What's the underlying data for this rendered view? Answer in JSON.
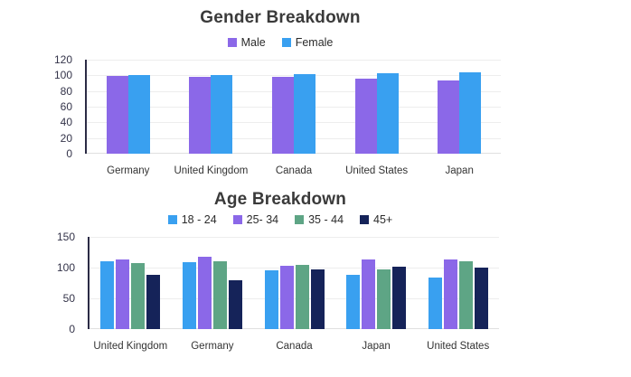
{
  "page": {
    "background": "#ffffff"
  },
  "palette": {
    "purple": "#8B68E8",
    "blue": "#39A0F0",
    "green": "#5EA585",
    "navy": "#152359",
    "axis_line": "#2b2b45",
    "grid_line": "#ededed",
    "title_text": "#3a3a3a",
    "tick_text": "#34344a"
  },
  "chart_data": [
    {
      "type": "bar",
      "title": "Gender Breakdown",
      "categories": [
        "Germany",
        "United Kingdom",
        "Canada",
        "United States",
        "Japan"
      ],
      "series": [
        {
          "name": "Male",
          "color": "#8B68E8",
          "values": [
            99,
            98,
            98,
            96,
            94
          ]
        },
        {
          "name": "Female",
          "color": "#39A0F0",
          "values": [
            101,
            101,
            102,
            103,
            104
          ]
        }
      ],
      "xlabel": "",
      "ylabel": "",
      "ylim": [
        0,
        120
      ],
      "yticks": [
        0,
        20,
        40,
        60,
        80,
        100,
        120
      ],
      "grid": true,
      "legend_position": "top"
    },
    {
      "type": "bar",
      "title": "Age Breakdown",
      "categories": [
        "United Kingdom",
        "Germany",
        "Canada",
        "Japan",
        "United States"
      ],
      "series": [
        {
          "name": "18 - 24",
          "color": "#39A0F0",
          "values": [
            110,
            109,
            95,
            88,
            84
          ]
        },
        {
          "name": "25- 34",
          "color": "#8B68E8",
          "values": [
            114,
            117,
            103,
            113,
            113
          ]
        },
        {
          "name": "35 - 44",
          "color": "#5EA585",
          "values": [
            107,
            110,
            104,
            97,
            110
          ]
        },
        {
          "name": "45+",
          "color": "#152359",
          "values": [
            89,
            80,
            97,
            102,
            100
          ]
        }
      ],
      "xlabel": "",
      "ylabel": "",
      "ylim": [
        0,
        150
      ],
      "yticks": [
        0,
        50,
        100,
        150
      ],
      "grid": true,
      "legend_position": "top"
    }
  ]
}
